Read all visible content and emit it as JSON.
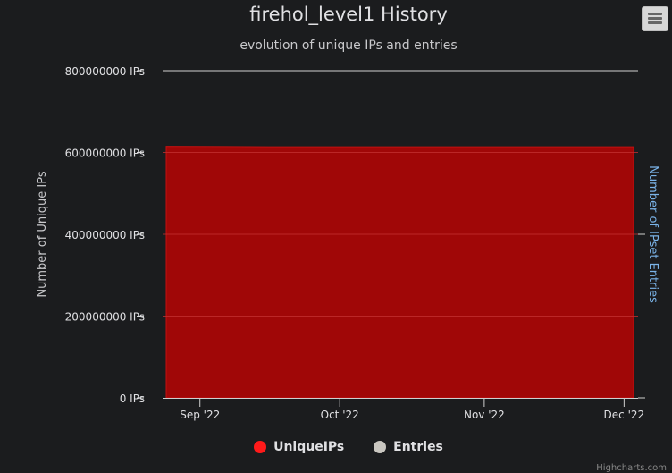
{
  "chart_data": {
    "type": "area",
    "title": "firehol_level1 History",
    "subtitle": "evolution of unique IPs and entries",
    "ylabel_left": "Number of Unique IPs",
    "ylabel_right": "Number of IPset Entries",
    "y_ticks": [
      "0 IPs",
      "200000000 IPs",
      "400000000 IPs",
      "600000000 IPs",
      "800000000 IPs"
    ],
    "ylim": [
      0,
      800000000
    ],
    "x_ticks": [
      "Sep '22",
      "Oct '22",
      "Nov '22",
      "Dec '22"
    ],
    "x_range": [
      "2022-08-24",
      "2022-12-04"
    ],
    "series": [
      {
        "name": "UniqueIPs",
        "color": "#a00707",
        "x": [
          "2022-08-24",
          "2022-09-15",
          "2022-10-15",
          "2022-11-15",
          "2022-12-04"
        ],
        "values": [
          615000000,
          614000000,
          614000000,
          614000000,
          614000000
        ]
      },
      {
        "name": "Entries",
        "color": "#c9c6c0",
        "x": [],
        "values": []
      }
    ],
    "legend_position": "bottom",
    "grid": true
  },
  "ui": {
    "credits": "Highcharts.com"
  }
}
